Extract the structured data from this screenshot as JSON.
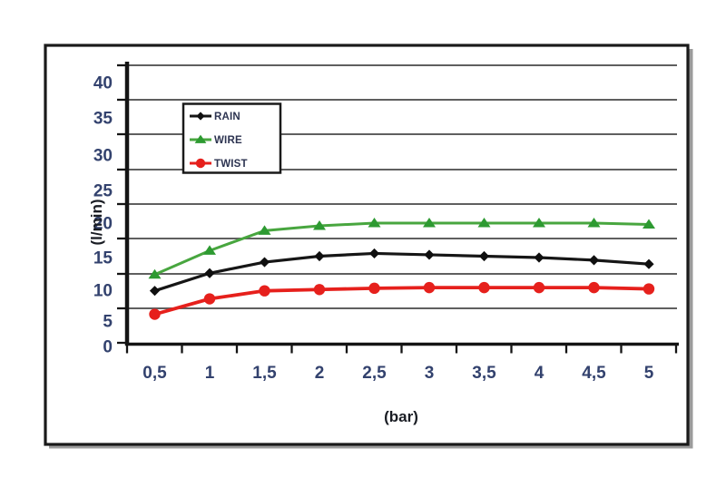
{
  "page": {
    "background": "#ffffff"
  },
  "figure": {
    "border_color": "#1a1a1a",
    "fill": "#ffffff",
    "shadow_color": "#9b9b9b"
  },
  "chart_data": {
    "type": "line",
    "title": "",
    "xlabel": "(bar)",
    "ylabel": "(l/min)",
    "x_values": [
      0.5,
      1,
      1.5,
      2,
      2.5,
      3,
      3.5,
      4,
      4.5,
      5
    ],
    "x_tick_labels": [
      "0,5",
      "1",
      "1,5",
      "2",
      "2,5",
      "3",
      "3,5",
      "4",
      "4,5",
      "5"
    ],
    "y_tick_values": [
      0,
      5,
      10,
      15,
      20,
      25,
      30,
      35,
      40
    ],
    "y_tick_labels": [
      "0",
      "5",
      "10",
      "15",
      "20",
      "25",
      "30",
      "35",
      "40"
    ],
    "ylim": [
      0,
      40
    ],
    "grid": "horizontal gridlines every 5 l/min",
    "legend_position": "upper left inside plot",
    "series": [
      {
        "name": "RAIN",
        "marker": "diamond",
        "color": "#0f0f0f",
        "line_color": "#161616",
        "values": [
          9.9,
          12.6,
          14.3,
          15.2,
          15.6,
          15.4,
          15.2,
          15.0,
          14.6,
          14.0
        ]
      },
      {
        "name": "WIRE",
        "marker": "triangle",
        "color": "#2d9a31",
        "line_color": "#48a63f",
        "values": [
          12.4,
          16.0,
          18.9,
          19.6,
          20.0,
          20.0,
          20.0,
          20.0,
          20.0,
          19.8
        ]
      },
      {
        "name": "TWIST",
        "marker": "circle",
        "color": "#e6201c",
        "line_color": "#e6201c",
        "values": [
          6.1,
          8.6,
          9.9,
          10.1,
          10.3,
          10.4,
          10.4,
          10.4,
          10.4,
          10.2
        ]
      }
    ],
    "styles": {
      "tick_label_color": "#33426e",
      "axis_title_color": "#1a1d24",
      "legend_text_color": "#2c3350",
      "gridline_color": "#5f5f5f",
      "axis_color": "#141414"
    }
  }
}
